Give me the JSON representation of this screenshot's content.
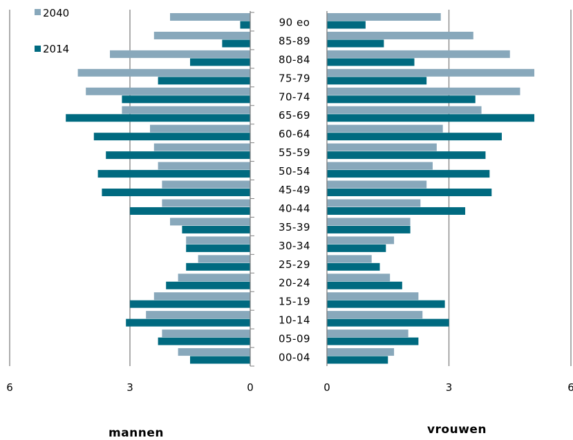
{
  "chart_data": {
    "type": "bar",
    "orientation": "horizontal",
    "layout": "population-pyramid",
    "colors": {
      "2040": "#88a8bb",
      "2014": "#006a80",
      "grid": "#7f7f7f"
    },
    "legend": {
      "placement": "top-left",
      "entries": [
        "2040",
        "2014"
      ]
    },
    "categories": [
      "00-04",
      "05-09",
      "10-14",
      "15-19",
      "20-24",
      "25-29",
      "30-34",
      "35-39",
      "40-44",
      "45-49",
      "50-54",
      "55-59",
      "60-64",
      "65-69",
      "70-74",
      "75-79",
      "80-84",
      "85-89",
      "90 eo"
    ],
    "panels": [
      {
        "id": "mannen",
        "title": "mannen",
        "direction": "left",
        "xlim": [
          0,
          6
        ],
        "xticks": [
          "6",
          "3",
          "0"
        ],
        "xtick_values": [
          6,
          3,
          0
        ],
        "grid": true,
        "series": [
          {
            "name": "2040",
            "values": [
              1.8,
              2.2,
              2.6,
              2.4,
              1.8,
              1.3,
              1.6,
              2.0,
              2.2,
              2.2,
              2.3,
              2.4,
              2.5,
              3.2,
              4.1,
              4.3,
              3.5,
              2.4,
              2.0
            ]
          },
          {
            "name": "2014",
            "values": [
              1.5,
              2.3,
              3.1,
              3.0,
              2.1,
              1.6,
              1.6,
              1.7,
              3.0,
              3.7,
              3.8,
              3.6,
              3.9,
              4.6,
              3.2,
              2.3,
              1.5,
              0.7,
              0.25
            ]
          }
        ]
      },
      {
        "id": "vrouwen",
        "title": "vrouwen",
        "direction": "right",
        "xlim": [
          0,
          6
        ],
        "xticks": [
          "0",
          "3",
          "6"
        ],
        "xtick_values": [
          0,
          3,
          6
        ],
        "grid": true,
        "series": [
          {
            "name": "2040",
            "values": [
              1.65,
              2.0,
              2.35,
              2.25,
              1.55,
              1.1,
              1.65,
              2.05,
              2.3,
              2.45,
              2.6,
              2.7,
              2.85,
              3.8,
              4.75,
              5.1,
              4.5,
              3.6,
              2.8
            ]
          },
          {
            "name": "2014",
            "values": [
              1.5,
              2.25,
              3.0,
              2.9,
              1.85,
              1.3,
              1.45,
              2.05,
              3.4,
              4.05,
              4.0,
              3.9,
              4.3,
              5.1,
              3.65,
              2.45,
              2.15,
              1.4,
              0.95
            ]
          }
        ]
      }
    ]
  }
}
